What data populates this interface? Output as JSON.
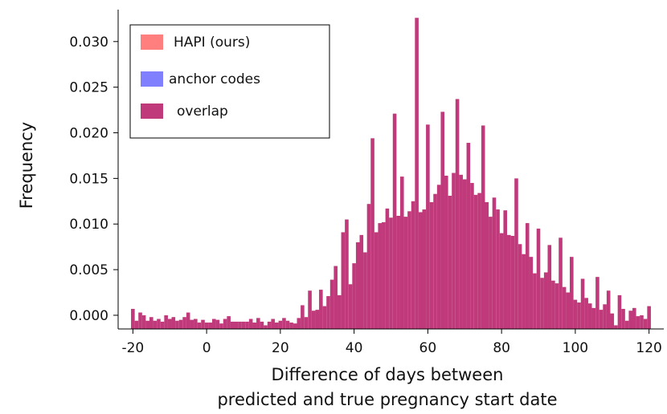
{
  "chart_data": {
    "type": "bar",
    "title": "",
    "xlabel_line1": "Difference of days between",
    "xlabel_line2": "predicted and true pregnancy start date",
    "ylabel": "Frequency",
    "xlim": [
      -24,
      124
    ],
    "ylim": [
      -0.0015,
      0.0335
    ],
    "bin_width": 1,
    "x_ticks": [
      -20,
      0,
      20,
      40,
      60,
      80,
      100,
      120
    ],
    "x_tick_labels": [
      "-20",
      "0",
      "20",
      "40",
      "60",
      "80",
      "100",
      "120"
    ],
    "y_ticks": [
      0,
      0.005,
      0.01,
      0.015,
      0.02,
      0.025,
      0.03
    ],
    "y_tick_labels": [
      "0.000",
      "0.005",
      "0.010",
      "0.015",
      "0.020",
      "0.025",
      "0.030"
    ],
    "grid": false,
    "legend_position": "top-left",
    "legend": [
      {
        "label": "HAPI (ours)",
        "color": "#ff7f7f"
      },
      {
        "label": "anchor codes",
        "color": "#8080ff"
      },
      {
        "label": "overlap",
        "color": "#c0397a"
      }
    ],
    "series": [
      {
        "name": "HAPI (ours)",
        "color": "#ff7f7f",
        "points": [
          [
            -20,
            0.0007
          ],
          [
            -19,
            -0.0006
          ],
          [
            -18,
            0.0003
          ],
          [
            -17,
            0.0
          ],
          [
            -16,
            -0.0006
          ],
          [
            -15,
            -0.0002
          ],
          [
            -14,
            -0.0006
          ],
          [
            -13,
            -0.0004
          ],
          [
            -12,
            -0.0007
          ],
          [
            -11,
            0.0
          ],
          [
            -10,
            -0.0004
          ],
          [
            -9,
            -0.0002
          ],
          [
            -8,
            -0.0006
          ],
          [
            -7,
            -0.0005
          ],
          [
            -6,
            -0.0002
          ],
          [
            -5,
            0.0003
          ],
          [
            -4,
            -0.0005
          ],
          [
            -3,
            -0.0004
          ],
          [
            -2,
            -0.0008
          ],
          [
            -1,
            -0.0005
          ],
          [
            0,
            -0.0008
          ],
          [
            1,
            -0.0008
          ],
          [
            2,
            -0.0004
          ],
          [
            3,
            -0.0005
          ],
          [
            4,
            -0.0009
          ],
          [
            5,
            -0.0004
          ],
          [
            6,
            -0.0001
          ],
          [
            7,
            -0.0007
          ],
          [
            8,
            -0.0007
          ],
          [
            9,
            -0.0007
          ],
          [
            10,
            -0.0007
          ],
          [
            11,
            -0.0007
          ],
          [
            12,
            -0.0004
          ],
          [
            13,
            -0.0008
          ],
          [
            14,
            -0.0003
          ],
          [
            15,
            -0.0007
          ],
          [
            16,
            -0.0011
          ],
          [
            17,
            -0.0007
          ],
          [
            18,
            -0.0004
          ],
          [
            19,
            -0.0008
          ],
          [
            20,
            -0.0006
          ],
          [
            21,
            -0.0003
          ],
          [
            22,
            -0.0006
          ],
          [
            23,
            -0.0008
          ],
          [
            24,
            -0.0009
          ],
          [
            25,
            -0.0003
          ],
          [
            26,
            0.0011
          ],
          [
            27,
            -0.0002
          ],
          [
            28,
            0.0027
          ],
          [
            29,
            0.0005
          ],
          [
            30,
            0.0006
          ],
          [
            31,
            0.0028
          ],
          [
            32,
            0.001
          ],
          [
            33,
            0.0021
          ],
          [
            34,
            0.0039
          ],
          [
            35,
            0.0054
          ],
          [
            36,
            0.0022
          ],
          [
            37,
            0.0091
          ],
          [
            38,
            0.0105
          ],
          [
            39,
            0.0034
          ],
          [
            40,
            0.0057
          ],
          [
            41,
            0.008
          ],
          [
            42,
            0.0088
          ],
          [
            43,
            0.0069
          ],
          [
            44,
            0.0122
          ],
          [
            45,
            0.0194
          ],
          [
            46,
            0.0091
          ],
          [
            47,
            0.0101
          ],
          [
            48,
            0.0102
          ],
          [
            49,
            0.0117
          ],
          [
            50,
            0.0107
          ],
          [
            51,
            0.0221
          ],
          [
            52,
            0.0109
          ],
          [
            53,
            0.0152
          ],
          [
            54,
            0.0108
          ],
          [
            55,
            0.0114
          ],
          [
            56,
            0.0125
          ],
          [
            57,
            0.0326
          ],
          [
            58,
            0.0113
          ],
          [
            59,
            0.0116
          ],
          [
            60,
            0.0209
          ],
          [
            61,
            0.0124
          ],
          [
            62,
            0.0133
          ],
          [
            63,
            0.0143
          ],
          [
            64,
            0.0223
          ],
          [
            65,
            0.0153
          ],
          [
            66,
            0.0131
          ],
          [
            67,
            0.0156
          ],
          [
            68,
            0.0237
          ],
          [
            69,
            0.0154
          ],
          [
            70,
            0.0149
          ],
          [
            71,
            0.0189
          ],
          [
            72,
            0.0145
          ],
          [
            73,
            0.0132
          ],
          [
            74,
            0.0134
          ],
          [
            75,
            0.0208
          ],
          [
            76,
            0.0124
          ],
          [
            77,
            0.0108
          ],
          [
            78,
            0.0129
          ],
          [
            79,
            0.0116
          ],
          [
            80,
            0.009
          ],
          [
            81,
            0.0115
          ],
          [
            82,
            0.0088
          ],
          [
            83,
            0.0087
          ],
          [
            84,
            0.015
          ],
          [
            85,
            0.0078
          ],
          [
            86,
            0.0067
          ],
          [
            87,
            0.0101
          ],
          [
            88,
            0.0064
          ],
          [
            89,
            0.0046
          ],
          [
            90,
            0.0095
          ],
          [
            91,
            0.0041
          ],
          [
            92,
            0.0047
          ],
          [
            93,
            0.0077
          ],
          [
            94,
            0.0038
          ],
          [
            95,
            0.0035
          ],
          [
            96,
            0.0085
          ],
          [
            97,
            0.0031
          ],
          [
            98,
            0.0025
          ],
          [
            99,
            0.0064
          ],
          [
            100,
            0.0017
          ],
          [
            101,
            0.0014
          ],
          [
            102,
            0.004
          ],
          [
            103,
            0.0019
          ],
          [
            104,
            0.0013
          ],
          [
            105,
            0.0008
          ],
          [
            106,
            0.0042
          ],
          [
            107,
            0.0006
          ],
          [
            108,
            0.0012
          ],
          [
            109,
            0.0027
          ],
          [
            110,
            0.0002
          ],
          [
            111,
            -0.0011
          ],
          [
            112,
            0.0022
          ],
          [
            113,
            0.0007
          ],
          [
            114,
            -0.0006
          ],
          [
            115,
            0.0005
          ],
          [
            116,
            0.0008
          ],
          [
            117,
            -0.0001
          ],
          [
            118,
            0.0
          ],
          [
            119,
            -0.0004
          ],
          [
            120,
            0.001
          ]
        ]
      },
      {
        "name": "anchor codes",
        "color": "#8080ff",
        "points": [
          [
            -20,
            0.0007
          ],
          [
            -19,
            -0.0006
          ],
          [
            -18,
            0.0003
          ],
          [
            -17,
            0.0
          ],
          [
            -16,
            -0.0006
          ],
          [
            -15,
            -0.0002
          ],
          [
            -14,
            -0.0006
          ],
          [
            -13,
            -0.0004
          ],
          [
            -12,
            -0.0007
          ],
          [
            -11,
            0.0
          ],
          [
            -10,
            -0.0004
          ],
          [
            -9,
            -0.0002
          ],
          [
            -8,
            -0.0006
          ],
          [
            -7,
            -0.0005
          ],
          [
            -6,
            -0.0002
          ],
          [
            -5,
            0.0003
          ],
          [
            -4,
            -0.0005
          ],
          [
            -3,
            -0.0004
          ],
          [
            -2,
            -0.0008
          ],
          [
            -1,
            -0.0005
          ],
          [
            0,
            -0.0008
          ],
          [
            1,
            -0.0008
          ],
          [
            2,
            -0.0004
          ],
          [
            3,
            -0.0005
          ],
          [
            4,
            -0.0009
          ],
          [
            5,
            -0.0004
          ],
          [
            6,
            -0.0001
          ],
          [
            7,
            -0.0007
          ],
          [
            8,
            -0.0007
          ],
          [
            9,
            -0.0007
          ],
          [
            10,
            -0.0007
          ],
          [
            11,
            -0.0007
          ],
          [
            12,
            -0.0004
          ],
          [
            13,
            -0.0008
          ],
          [
            14,
            -0.0003
          ],
          [
            15,
            -0.0007
          ],
          [
            16,
            -0.0011
          ],
          [
            17,
            -0.0007
          ],
          [
            18,
            -0.0004
          ],
          [
            19,
            -0.0008
          ],
          [
            20,
            -0.0006
          ],
          [
            21,
            -0.0003
          ],
          [
            22,
            -0.0006
          ],
          [
            23,
            -0.0008
          ],
          [
            24,
            -0.0009
          ],
          [
            25,
            -0.0003
          ],
          [
            26,
            0.0011
          ],
          [
            27,
            -0.0002
          ],
          [
            28,
            0.0027
          ],
          [
            29,
            0.0005
          ],
          [
            30,
            0.0006
          ],
          [
            31,
            0.0028
          ],
          [
            32,
            0.001
          ],
          [
            33,
            0.0021
          ],
          [
            34,
            0.0039
          ],
          [
            35,
            0.0054
          ],
          [
            36,
            0.0022
          ],
          [
            37,
            0.0091
          ],
          [
            38,
            0.0105
          ],
          [
            39,
            0.0034
          ],
          [
            40,
            0.0057
          ],
          [
            41,
            0.008
          ],
          [
            42,
            0.0088
          ],
          [
            43,
            0.0069
          ],
          [
            44,
            0.0122
          ],
          [
            45,
            0.0194
          ],
          [
            46,
            0.0091
          ],
          [
            47,
            0.0101
          ],
          [
            48,
            0.0102
          ],
          [
            49,
            0.0117
          ],
          [
            50,
            0.0107
          ],
          [
            51,
            0.0221
          ],
          [
            52,
            0.0109
          ],
          [
            53,
            0.0152
          ],
          [
            54,
            0.0108
          ],
          [
            55,
            0.0114
          ],
          [
            56,
            0.0125
          ],
          [
            57,
            0.0326
          ],
          [
            58,
            0.0113
          ],
          [
            59,
            0.0116
          ],
          [
            60,
            0.0209
          ],
          [
            61,
            0.0124
          ],
          [
            62,
            0.0133
          ],
          [
            63,
            0.0143
          ],
          [
            64,
            0.0223
          ],
          [
            65,
            0.0153
          ],
          [
            66,
            0.0131
          ],
          [
            67,
            0.0156
          ],
          [
            68,
            0.0237
          ],
          [
            69,
            0.0154
          ],
          [
            70,
            0.0149
          ],
          [
            71,
            0.0189
          ],
          [
            72,
            0.0145
          ],
          [
            73,
            0.0132
          ],
          [
            74,
            0.0134
          ],
          [
            75,
            0.0208
          ],
          [
            76,
            0.0124
          ],
          [
            77,
            0.0108
          ],
          [
            78,
            0.0129
          ],
          [
            79,
            0.0116
          ],
          [
            80,
            0.009
          ],
          [
            81,
            0.0115
          ],
          [
            82,
            0.0088
          ],
          [
            83,
            0.0087
          ],
          [
            84,
            0.015
          ],
          [
            85,
            0.0078
          ],
          [
            86,
            0.0067
          ],
          [
            87,
            0.0101
          ],
          [
            88,
            0.0064
          ],
          [
            89,
            0.0046
          ],
          [
            90,
            0.0095
          ],
          [
            91,
            0.0041
          ],
          [
            92,
            0.0047
          ],
          [
            93,
            0.0077
          ],
          [
            94,
            0.0038
          ],
          [
            95,
            0.0035
          ],
          [
            96,
            0.0085
          ],
          [
            97,
            0.0031
          ],
          [
            98,
            0.0025
          ],
          [
            99,
            0.0064
          ],
          [
            100,
            0.0017
          ],
          [
            101,
            0.0014
          ],
          [
            102,
            0.004
          ],
          [
            103,
            0.0019
          ],
          [
            104,
            0.0013
          ],
          [
            105,
            0.0008
          ],
          [
            106,
            0.0042
          ],
          [
            107,
            0.0006
          ],
          [
            108,
            0.0012
          ],
          [
            109,
            0.0027
          ],
          [
            110,
            0.0002
          ],
          [
            111,
            -0.0011
          ],
          [
            112,
            0.0022
          ],
          [
            113,
            0.0007
          ],
          [
            114,
            -0.0006
          ],
          [
            115,
            0.0005
          ],
          [
            116,
            0.0008
          ],
          [
            117,
            -0.0001
          ],
          [
            118,
            0.0
          ],
          [
            119,
            -0.0004
          ],
          [
            120,
            0.001
          ]
        ]
      }
    ]
  }
}
